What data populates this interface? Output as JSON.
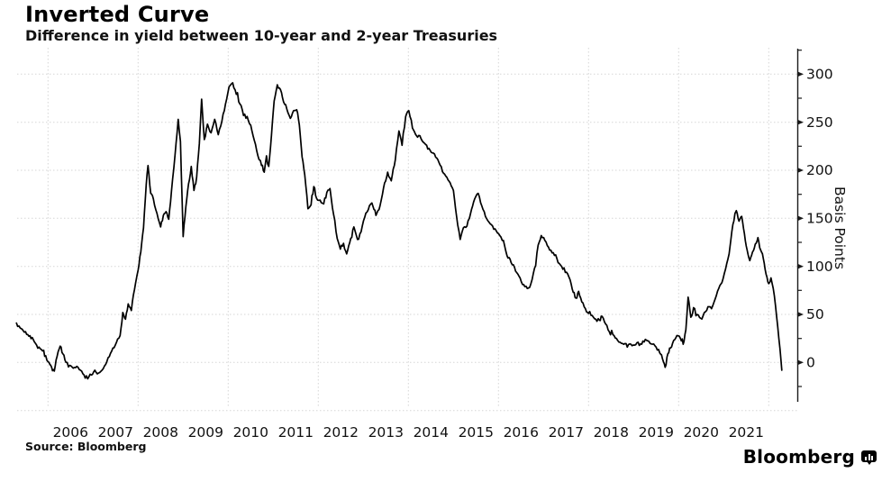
{
  "header": {
    "title": "Inverted Curve",
    "subtitle": "Difference in yield between 10-year and 2-year Treasuries"
  },
  "footer": {
    "source": "Source: Bloomberg",
    "brand": "Bloomberg",
    "brand_mark": "bloomberg-terminal-icon"
  },
  "colors": {
    "line": "#000000",
    "grid": "#d6d6d6",
    "axis": "#1a1a1a",
    "text": "#111111",
    "background": "#ffffff"
  },
  "chart_data": {
    "type": "line",
    "title": "Inverted Curve",
    "subtitle": "Difference in yield between 10-year and 2-year Treasuries",
    "xlabel": "",
    "ylabel": "Basis Points",
    "y_axis_position": "right",
    "y_ticks": [
      0,
      50,
      100,
      150,
      200,
      250,
      300
    ],
    "y_minor_ticks": [
      -25,
      25,
      75,
      125,
      175,
      225,
      275,
      325
    ],
    "ylim": [
      -52,
      327
    ],
    "x_tick_labels": [
      "2006",
      "2007",
      "2008",
      "2009",
      "2010",
      "2011",
      "2012",
      "2013",
      "2014",
      "2015",
      "2016",
      "2017",
      "2018",
      "2019",
      "2020",
      "2021"
    ],
    "x_domain_years": [
      2005.3,
      2022.32
    ],
    "grid": {
      "style": "dotted",
      "horizontal_bp": [
        -50,
        0,
        50,
        100,
        150,
        200,
        250,
        300
      ],
      "vertical_years": [
        2006,
        2008,
        2010,
        2012,
        2014,
        2016,
        2018,
        2020,
        2022
      ]
    },
    "legend": "none",
    "series": [
      {
        "name": "10-year minus 2-year Treasury yield spread (basis points)",
        "anchors": [
          [
            2005.3,
            41
          ],
          [
            2005.38,
            36
          ],
          [
            2005.45,
            33
          ],
          [
            2005.55,
            29
          ],
          [
            2005.65,
            26
          ],
          [
            2005.72,
            20
          ],
          [
            2005.8,
            16
          ],
          [
            2005.88,
            12
          ],
          [
            2005.95,
            7
          ],
          [
            2006.02,
            0
          ],
          [
            2006.08,
            -5
          ],
          [
            2006.14,
            -9
          ],
          [
            2006.2,
            6
          ],
          [
            2006.27,
            17
          ],
          [
            2006.33,
            9
          ],
          [
            2006.4,
            0
          ],
          [
            2006.48,
            -3
          ],
          [
            2006.56,
            -6
          ],
          [
            2006.64,
            -4
          ],
          [
            2006.72,
            -8
          ],
          [
            2006.8,
            -13
          ],
          [
            2006.88,
            -17
          ],
          [
            2006.96,
            -13
          ],
          [
            2007.04,
            -8
          ],
          [
            2007.12,
            -11
          ],
          [
            2007.2,
            -8
          ],
          [
            2007.28,
            -2
          ],
          [
            2007.36,
            6
          ],
          [
            2007.44,
            15
          ],
          [
            2007.52,
            21
          ],
          [
            2007.6,
            28
          ],
          [
            2007.66,
            52
          ],
          [
            2007.72,
            45
          ],
          [
            2007.78,
            61
          ],
          [
            2007.85,
            54
          ],
          [
            2007.92,
            76
          ],
          [
            2008.0,
            96
          ],
          [
            2008.06,
            115
          ],
          [
            2008.12,
            140
          ],
          [
            2008.18,
            185
          ],
          [
            2008.22,
            205
          ],
          [
            2008.28,
            176
          ],
          [
            2008.34,
            170
          ],
          [
            2008.42,
            155
          ],
          [
            2008.5,
            141
          ],
          [
            2008.56,
            153
          ],
          [
            2008.62,
            157
          ],
          [
            2008.68,
            149
          ],
          [
            2008.74,
            178
          ],
          [
            2008.82,
            216
          ],
          [
            2008.89,
            253
          ],
          [
            2008.94,
            230
          ],
          [
            2009.0,
            131
          ],
          [
            2009.06,
            162
          ],
          [
            2009.12,
            186
          ],
          [
            2009.18,
            204
          ],
          [
            2009.24,
            179
          ],
          [
            2009.3,
            193
          ],
          [
            2009.36,
            228
          ],
          [
            2009.41,
            274
          ],
          [
            2009.47,
            232
          ],
          [
            2009.54,
            248
          ],
          [
            2009.62,
            239
          ],
          [
            2009.7,
            253
          ],
          [
            2009.78,
            237
          ],
          [
            2009.86,
            251
          ],
          [
            2009.94,
            269
          ],
          [
            2010.02,
            287
          ],
          [
            2010.1,
            291
          ],
          [
            2010.18,
            279
          ],
          [
            2010.26,
            269
          ],
          [
            2010.34,
            257
          ],
          [
            2010.42,
            256
          ],
          [
            2010.5,
            247
          ],
          [
            2010.58,
            231
          ],
          [
            2010.66,
            215
          ],
          [
            2010.74,
            205
          ],
          [
            2010.8,
            198
          ],
          [
            2010.85,
            215
          ],
          [
            2010.9,
            204
          ],
          [
            2010.96,
            236
          ],
          [
            2011.02,
            272
          ],
          [
            2011.09,
            289
          ],
          [
            2011.16,
            284
          ],
          [
            2011.23,
            271
          ],
          [
            2011.3,
            264
          ],
          [
            2011.38,
            254
          ],
          [
            2011.45,
            262
          ],
          [
            2011.52,
            263
          ],
          [
            2011.58,
            247
          ],
          [
            2011.64,
            214
          ],
          [
            2011.7,
            195
          ],
          [
            2011.77,
            160
          ],
          [
            2011.84,
            164
          ],
          [
            2011.9,
            183
          ],
          [
            2011.96,
            171
          ],
          [
            2012.04,
            169
          ],
          [
            2012.12,
            165
          ],
          [
            2012.19,
            177
          ],
          [
            2012.26,
            181
          ],
          [
            2012.34,
            154
          ],
          [
            2012.42,
            129
          ],
          [
            2012.49,
            118
          ],
          [
            2012.56,
            124
          ],
          [
            2012.63,
            113
          ],
          [
            2012.72,
            129
          ],
          [
            2012.79,
            141
          ],
          [
            2012.87,
            128
          ],
          [
            2012.95,
            136
          ],
          [
            2013.03,
            151
          ],
          [
            2013.11,
            159
          ],
          [
            2013.19,
            166
          ],
          [
            2013.28,
            153
          ],
          [
            2013.37,
            163
          ],
          [
            2013.45,
            182
          ],
          [
            2013.54,
            198
          ],
          [
            2013.62,
            189
          ],
          [
            2013.71,
            211
          ],
          [
            2013.79,
            241
          ],
          [
            2013.86,
            226
          ],
          [
            2013.94,
            256
          ],
          [
            2014.01,
            262
          ],
          [
            2014.09,
            244
          ],
          [
            2014.18,
            236
          ],
          [
            2014.28,
            233
          ],
          [
            2014.38,
            227
          ],
          [
            2014.48,
            221
          ],
          [
            2014.58,
            217
          ],
          [
            2014.68,
            208
          ],
          [
            2014.78,
            197
          ],
          [
            2014.88,
            190
          ],
          [
            2015.0,
            179
          ],
          [
            2015.07,
            152
          ],
          [
            2015.15,
            128
          ],
          [
            2015.22,
            140
          ],
          [
            2015.3,
            142
          ],
          [
            2015.38,
            155
          ],
          [
            2015.47,
            170
          ],
          [
            2015.55,
            176
          ],
          [
            2015.63,
            163
          ],
          [
            2015.71,
            152
          ],
          [
            2015.79,
            146
          ],
          [
            2015.87,
            142
          ],
          [
            2015.95,
            137
          ],
          [
            2016.03,
            132
          ],
          [
            2016.11,
            127
          ],
          [
            2016.19,
            111
          ],
          [
            2016.28,
            104
          ],
          [
            2016.38,
            95
          ],
          [
            2016.48,
            88
          ],
          [
            2016.56,
            81
          ],
          [
            2016.64,
            77
          ],
          [
            2016.72,
            82
          ],
          [
            2016.8,
            98
          ],
          [
            2016.88,
            122
          ],
          [
            2016.95,
            132
          ],
          [
            2017.03,
            127
          ],
          [
            2017.11,
            120
          ],
          [
            2017.19,
            114
          ],
          [
            2017.27,
            112
          ],
          [
            2017.35,
            103
          ],
          [
            2017.43,
            97
          ],
          [
            2017.51,
            94
          ],
          [
            2017.59,
            86
          ],
          [
            2017.66,
            73
          ],
          [
            2017.72,
            67
          ],
          [
            2017.78,
            74
          ],
          [
            2017.85,
            63
          ],
          [
            2017.93,
            56
          ],
          [
            2018.0,
            51
          ],
          [
            2018.08,
            49
          ],
          [
            2018.16,
            45
          ],
          [
            2018.24,
            44
          ],
          [
            2018.3,
            48
          ],
          [
            2018.38,
            40
          ],
          [
            2018.46,
            32
          ],
          [
            2018.54,
            29
          ],
          [
            2018.62,
            25
          ],
          [
            2018.7,
            21
          ],
          [
            2018.78,
            19
          ],
          [
            2018.86,
            16
          ],
          [
            2018.94,
            19
          ],
          [
            2019.02,
            18
          ],
          [
            2019.1,
            21
          ],
          [
            2019.18,
            19
          ],
          [
            2019.26,
            24
          ],
          [
            2019.34,
            22
          ],
          [
            2019.42,
            19
          ],
          [
            2019.5,
            16
          ],
          [
            2019.58,
            10
          ],
          [
            2019.64,
            4
          ],
          [
            2019.7,
            -5
          ],
          [
            2019.76,
            9
          ],
          [
            2019.82,
            15
          ],
          [
            2019.89,
            23
          ],
          [
            2019.96,
            28
          ],
          [
            2020.04,
            25
          ],
          [
            2020.1,
            19
          ],
          [
            2020.16,
            34
          ],
          [
            2020.21,
            68
          ],
          [
            2020.27,
            47
          ],
          [
            2020.33,
            57
          ],
          [
            2020.41,
            50
          ],
          [
            2020.49,
            46
          ],
          [
            2020.57,
            52
          ],
          [
            2020.65,
            58
          ],
          [
            2020.73,
            56
          ],
          [
            2020.81,
            66
          ],
          [
            2020.89,
            77
          ],
          [
            2020.96,
            83
          ],
          [
            2021.04,
            97
          ],
          [
            2021.12,
            113
          ],
          [
            2021.18,
            136
          ],
          [
            2021.25,
            155
          ],
          [
            2021.28,
            158
          ],
          [
            2021.34,
            147
          ],
          [
            2021.4,
            152
          ],
          [
            2021.46,
            134
          ],
          [
            2021.52,
            117
          ],
          [
            2021.58,
            106
          ],
          [
            2021.64,
            115
          ],
          [
            2021.7,
            123
          ],
          [
            2021.76,
            130
          ],
          [
            2021.82,
            117
          ],
          [
            2021.88,
            108
          ],
          [
            2021.94,
            92
          ],
          [
            2022.0,
            82
          ],
          [
            2022.05,
            88
          ],
          [
            2022.1,
            77
          ],
          [
            2022.15,
            59
          ],
          [
            2022.2,
            37
          ],
          [
            2022.25,
            14
          ],
          [
            2022.29,
            -8
          ]
        ]
      }
    ]
  }
}
